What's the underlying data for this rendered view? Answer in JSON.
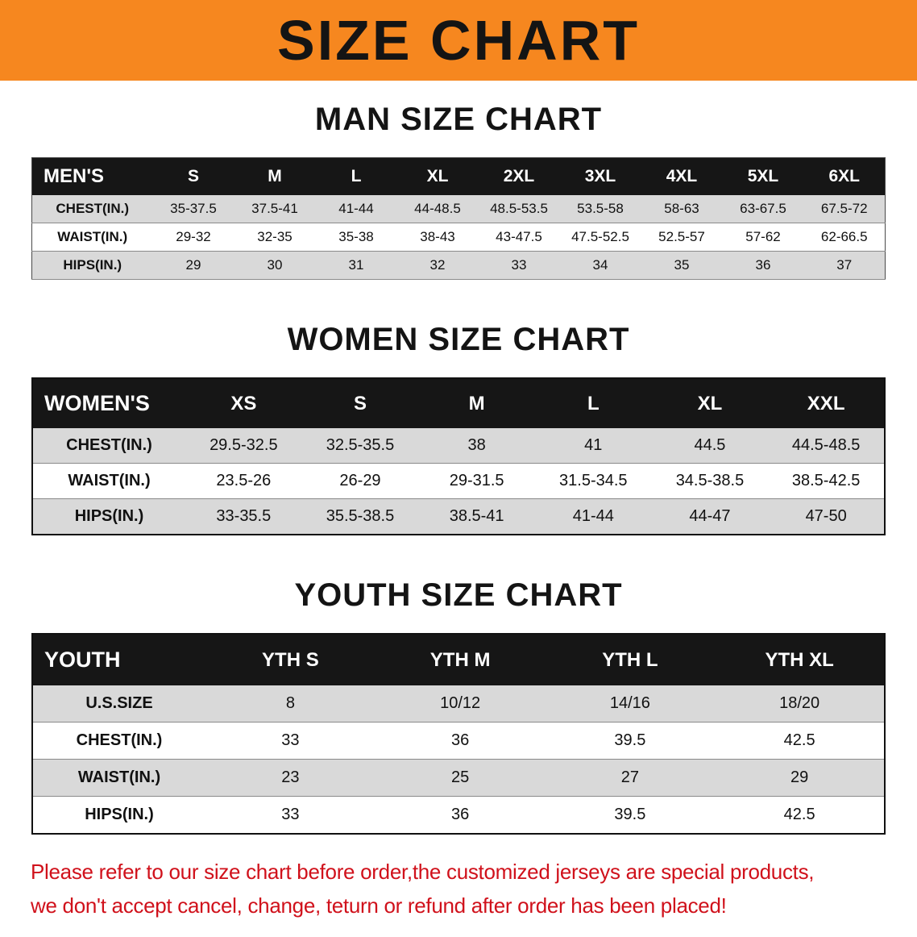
{
  "banner": {
    "title": "SIZE CHART",
    "bg_color": "#f6871f",
    "text_color": "#141414"
  },
  "sections": [
    {
      "id": "men",
      "heading": "MAN SIZE CHART",
      "table": {
        "header_label": "MEN'S",
        "columns": [
          "S",
          "M",
          "L",
          "XL",
          "2XL",
          "3XL",
          "4XL",
          "5XL",
          "6XL"
        ],
        "rows": [
          {
            "label": "CHEST(IN.)",
            "values": [
              "35-37.5",
              "37.5-41",
              "41-44",
              "44-48.5",
              "48.5-53.5",
              "53.5-58",
              "58-63",
              "63-67.5",
              "67.5-72"
            ]
          },
          {
            "label": "WAIST(IN.)",
            "values": [
              "29-32",
              "32-35",
              "35-38",
              "38-43",
              "43-47.5",
              "47.5-52.5",
              "52.5-57",
              "57-62",
              "62-66.5"
            ]
          },
          {
            "label": "HIPS(IN.)",
            "values": [
              "29",
              "30",
              "31",
              "32",
              "33",
              "34",
              "35",
              "36",
              "37"
            ]
          }
        ]
      }
    },
    {
      "id": "women",
      "heading": "WOMEN SIZE CHART",
      "table": {
        "header_label": "WOMEN'S",
        "columns": [
          "XS",
          "S",
          "M",
          "L",
          "XL",
          "XXL"
        ],
        "rows": [
          {
            "label": "CHEST(IN.)",
            "values": [
              "29.5-32.5",
              "32.5-35.5",
              "38",
              "41",
              "44.5",
              "44.5-48.5"
            ]
          },
          {
            "label": "WAIST(IN.)",
            "values": [
              "23.5-26",
              "26-29",
              "29-31.5",
              "31.5-34.5",
              "34.5-38.5",
              "38.5-42.5"
            ]
          },
          {
            "label": "HIPS(IN.)",
            "values": [
              "33-35.5",
              "35.5-38.5",
              "38.5-41",
              "41-44",
              "44-47",
              "47-50"
            ]
          }
        ]
      }
    },
    {
      "id": "youth",
      "heading": "YOUTH SIZE CHART",
      "table": {
        "header_label": "YOUTH",
        "columns": [
          "YTH S",
          "YTH M",
          "YTH L",
          "YTH XL"
        ],
        "rows": [
          {
            "label": "U.S.SIZE",
            "values": [
              "8",
              "10/12",
              "14/16",
              "18/20"
            ]
          },
          {
            "label": "CHEST(IN.)",
            "values": [
              "33",
              "36",
              "39.5",
              "42.5"
            ]
          },
          {
            "label": "WAIST(IN.)",
            "values": [
              "23",
              "25",
              "27",
              "29"
            ]
          },
          {
            "label": "HIPS(IN.)",
            "values": [
              "33",
              "36",
              "39.5",
              "42.5"
            ]
          }
        ]
      }
    }
  ],
  "footer": {
    "line1": "Please refer to our size chart before order,the customized jerseys are special products,",
    "line2": "we don't accept cancel, change, teturn or refund after order has been placed!",
    "text_color": "#d0111b"
  }
}
